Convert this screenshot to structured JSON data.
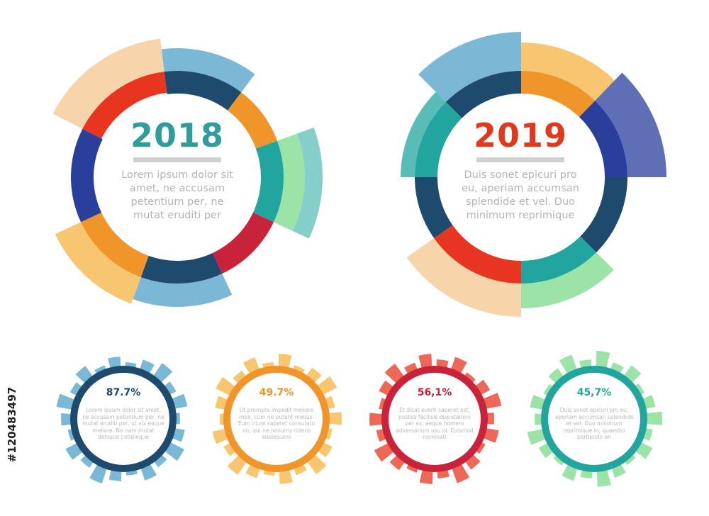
{
  "big_circles": [
    {
      "title": "2018",
      "title_color": "#2f9e9a",
      "text_lines": [
        "Lorem ipsum dolor sit",
        "amet, ne accusam",
        "petentium per, ne",
        "mutat eruditi per"
      ]
    },
    {
      "title": "2019",
      "title_color": "#e03a1e",
      "text_lines": [
        "Duis sonet epicuri pro",
        "eu, aperiam accumsan",
        "splendide et vel. Duo",
        "minimum reprimique"
      ]
    }
  ],
  "small_circles": [
    {
      "percent": "87.7%",
      "color": "#1e4a6e",
      "text_lines": [
        "Lorem ipsum dolor sit amet,",
        "ne accusam petentium per, ne",
        "mutat eruditi per, ut vix eaque",
        "meliore. No nam mutat",
        "denique cotidieque"
      ]
    },
    {
      "percent": "49.7%",
      "color": "#f0952a",
      "text_lines": [
        "Ut prompta impedit meliore",
        "mea, cum no putant melius.",
        "Eum iriure saperet consulatu",
        "no, qui ne nonumy ridens",
        "adolescens"
      ]
    },
    {
      "percent": "56,1%",
      "color": "#c8233a",
      "text_lines": [
        "Et dicat everti saperet est,",
        "postea facilisis disputationi",
        "per ex, aeque homero",
        "adversarium usu id. Euismod",
        "nominati"
      ]
    },
    {
      "percent": "45,7%",
      "color": "#22a59e",
      "text_lines": [
        "Duis sonet epicuri pro eu,",
        "aperiam accumsan splendide",
        "et vel. Duo minimum",
        "reprimique in, quaestio",
        "partiendo an"
      ]
    }
  ],
  "side_id": "#120483497",
  "palette": {
    "navy": "#1e4a6e",
    "blue": "#2a3f9c",
    "light_blue": "#4fa0c8",
    "orange": "#f0952a",
    "amber": "#f5b240",
    "peach": "#f5c58e",
    "red": "#e8351f",
    "crimson": "#c8233a",
    "teal": "#22a59e",
    "green": "#7ad98a",
    "title_gray": "#d0d0d0",
    "text_gray": "#b4b4b4"
  }
}
